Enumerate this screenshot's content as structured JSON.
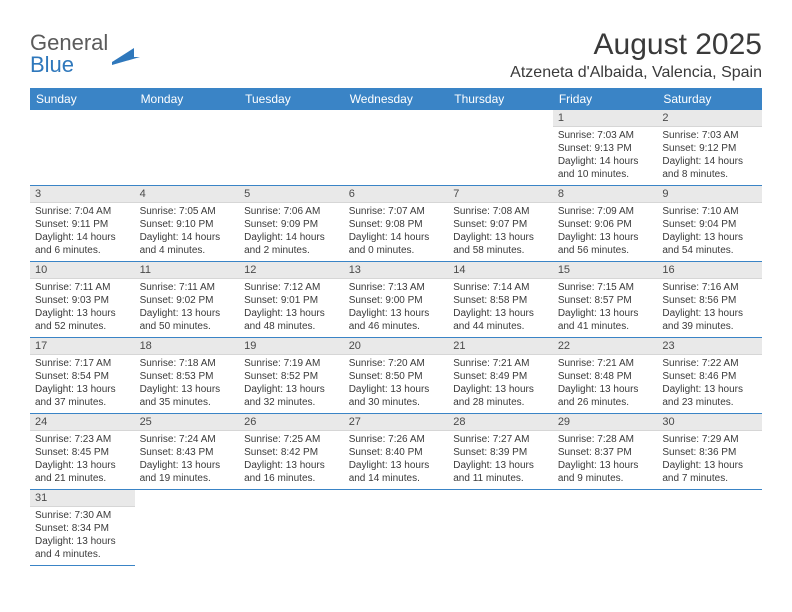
{
  "logo": {
    "word1": "General",
    "word2": "Blue"
  },
  "title": "August 2025",
  "location": "Atzeneta d'Albaida, Valencia, Spain",
  "colors": {
    "header_bg": "#3a84c6",
    "header_text": "#ffffff",
    "daynum_bg": "#e9e9e9",
    "border": "#3a84c6",
    "text": "#3a3a3a",
    "logo_gray": "#5b5b5b",
    "logo_blue": "#2f78bc"
  },
  "weekdays": [
    "Sunday",
    "Monday",
    "Tuesday",
    "Wednesday",
    "Thursday",
    "Friday",
    "Saturday"
  ],
  "weeks": [
    [
      null,
      null,
      null,
      null,
      null,
      {
        "n": "1",
        "sr": "7:03 AM",
        "ss": "9:13 PM",
        "dl": "14 hours and 10 minutes."
      },
      {
        "n": "2",
        "sr": "7:03 AM",
        "ss": "9:12 PM",
        "dl": "14 hours and 8 minutes."
      }
    ],
    [
      {
        "n": "3",
        "sr": "7:04 AM",
        "ss": "9:11 PM",
        "dl": "14 hours and 6 minutes."
      },
      {
        "n": "4",
        "sr": "7:05 AM",
        "ss": "9:10 PM",
        "dl": "14 hours and 4 minutes."
      },
      {
        "n": "5",
        "sr": "7:06 AM",
        "ss": "9:09 PM",
        "dl": "14 hours and 2 minutes."
      },
      {
        "n": "6",
        "sr": "7:07 AM",
        "ss": "9:08 PM",
        "dl": "14 hours and 0 minutes."
      },
      {
        "n": "7",
        "sr": "7:08 AM",
        "ss": "9:07 PM",
        "dl": "13 hours and 58 minutes."
      },
      {
        "n": "8",
        "sr": "7:09 AM",
        "ss": "9:06 PM",
        "dl": "13 hours and 56 minutes."
      },
      {
        "n": "9",
        "sr": "7:10 AM",
        "ss": "9:04 PM",
        "dl": "13 hours and 54 minutes."
      }
    ],
    [
      {
        "n": "10",
        "sr": "7:11 AM",
        "ss": "9:03 PM",
        "dl": "13 hours and 52 minutes."
      },
      {
        "n": "11",
        "sr": "7:11 AM",
        "ss": "9:02 PM",
        "dl": "13 hours and 50 minutes."
      },
      {
        "n": "12",
        "sr": "7:12 AM",
        "ss": "9:01 PM",
        "dl": "13 hours and 48 minutes."
      },
      {
        "n": "13",
        "sr": "7:13 AM",
        "ss": "9:00 PM",
        "dl": "13 hours and 46 minutes."
      },
      {
        "n": "14",
        "sr": "7:14 AM",
        "ss": "8:58 PM",
        "dl": "13 hours and 44 minutes."
      },
      {
        "n": "15",
        "sr": "7:15 AM",
        "ss": "8:57 PM",
        "dl": "13 hours and 41 minutes."
      },
      {
        "n": "16",
        "sr": "7:16 AM",
        "ss": "8:56 PM",
        "dl": "13 hours and 39 minutes."
      }
    ],
    [
      {
        "n": "17",
        "sr": "7:17 AM",
        "ss": "8:54 PM",
        "dl": "13 hours and 37 minutes."
      },
      {
        "n": "18",
        "sr": "7:18 AM",
        "ss": "8:53 PM",
        "dl": "13 hours and 35 minutes."
      },
      {
        "n": "19",
        "sr": "7:19 AM",
        "ss": "8:52 PM",
        "dl": "13 hours and 32 minutes."
      },
      {
        "n": "20",
        "sr": "7:20 AM",
        "ss": "8:50 PM",
        "dl": "13 hours and 30 minutes."
      },
      {
        "n": "21",
        "sr": "7:21 AM",
        "ss": "8:49 PM",
        "dl": "13 hours and 28 minutes."
      },
      {
        "n": "22",
        "sr": "7:21 AM",
        "ss": "8:48 PM",
        "dl": "13 hours and 26 minutes."
      },
      {
        "n": "23",
        "sr": "7:22 AM",
        "ss": "8:46 PM",
        "dl": "13 hours and 23 minutes."
      }
    ],
    [
      {
        "n": "24",
        "sr": "7:23 AM",
        "ss": "8:45 PM",
        "dl": "13 hours and 21 minutes."
      },
      {
        "n": "25",
        "sr": "7:24 AM",
        "ss": "8:43 PM",
        "dl": "13 hours and 19 minutes."
      },
      {
        "n": "26",
        "sr": "7:25 AM",
        "ss": "8:42 PM",
        "dl": "13 hours and 16 minutes."
      },
      {
        "n": "27",
        "sr": "7:26 AM",
        "ss": "8:40 PM",
        "dl": "13 hours and 14 minutes."
      },
      {
        "n": "28",
        "sr": "7:27 AM",
        "ss": "8:39 PM",
        "dl": "13 hours and 11 minutes."
      },
      {
        "n": "29",
        "sr": "7:28 AM",
        "ss": "8:37 PM",
        "dl": "13 hours and 9 minutes."
      },
      {
        "n": "30",
        "sr": "7:29 AM",
        "ss": "8:36 PM",
        "dl": "13 hours and 7 minutes."
      }
    ],
    [
      {
        "n": "31",
        "sr": "7:30 AM",
        "ss": "8:34 PM",
        "dl": "13 hours and 4 minutes."
      },
      null,
      null,
      null,
      null,
      null,
      null
    ]
  ],
  "labels": {
    "sunrise": "Sunrise:",
    "sunset": "Sunset:",
    "daylight": "Daylight:"
  }
}
